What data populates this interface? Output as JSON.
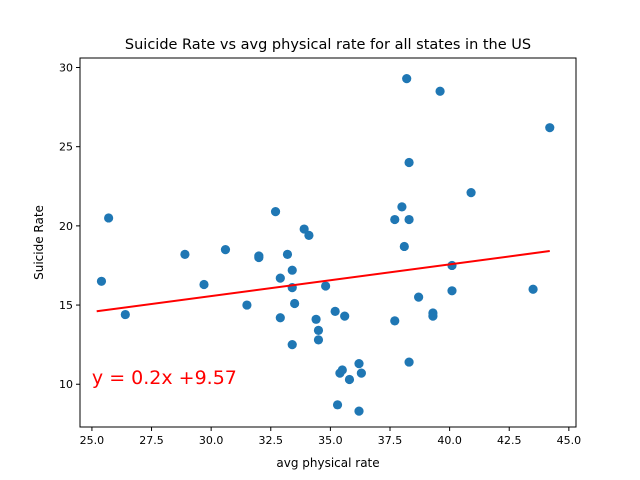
{
  "chart_data": {
    "type": "scatter",
    "title": "Suicide Rate vs avg physical rate for all states in the US",
    "xlabel": "avg physical rate",
    "ylabel": "Suicide Rate",
    "xlim": [
      24.5,
      45.3
    ],
    "ylim": [
      7.3,
      30.6
    ],
    "xticks": [
      25.0,
      27.5,
      30.0,
      32.5,
      35.0,
      37.5,
      40.0,
      42.5,
      45.0
    ],
    "xtick_labels": [
      "25.0",
      "27.5",
      "30.0",
      "32.5",
      "35.0",
      "37.5",
      "40.0",
      "42.5",
      "45.0"
    ],
    "yticks": [
      10,
      15,
      20,
      25,
      30
    ],
    "ytick_labels": [
      "10",
      "15",
      "20",
      "25",
      "30"
    ],
    "grid": false,
    "point_color": "#1f77b4",
    "line_color": "#ff0000",
    "points": [
      {
        "x": 25.4,
        "y": 16.5
      },
      {
        "x": 25.7,
        "y": 20.5
      },
      {
        "x": 26.4,
        "y": 14.4
      },
      {
        "x": 28.9,
        "y": 18.2
      },
      {
        "x": 29.7,
        "y": 16.3
      },
      {
        "x": 30.6,
        "y": 18.5
      },
      {
        "x": 31.5,
        "y": 15.0
      },
      {
        "x": 32.0,
        "y": 18.1
      },
      {
        "x": 32.0,
        "y": 18.0
      },
      {
        "x": 32.7,
        "y": 20.9
      },
      {
        "x": 32.9,
        "y": 16.7
      },
      {
        "x": 32.9,
        "y": 14.2
      },
      {
        "x": 33.2,
        "y": 18.2
      },
      {
        "x": 33.4,
        "y": 17.2
      },
      {
        "x": 33.4,
        "y": 16.1
      },
      {
        "x": 33.5,
        "y": 15.1
      },
      {
        "x": 33.4,
        "y": 12.5
      },
      {
        "x": 33.9,
        "y": 19.8
      },
      {
        "x": 34.1,
        "y": 19.4
      },
      {
        "x": 34.4,
        "y": 14.1
      },
      {
        "x": 34.5,
        "y": 13.4
      },
      {
        "x": 34.5,
        "y": 12.8
      },
      {
        "x": 34.8,
        "y": 16.2
      },
      {
        "x": 35.2,
        "y": 14.6
      },
      {
        "x": 35.3,
        "y": 8.7
      },
      {
        "x": 35.4,
        "y": 10.7
      },
      {
        "x": 35.5,
        "y": 10.9
      },
      {
        "x": 35.6,
        "y": 14.3
      },
      {
        "x": 35.8,
        "y": 10.3
      },
      {
        "x": 36.2,
        "y": 11.3
      },
      {
        "x": 36.3,
        "y": 10.7
      },
      {
        "x": 36.2,
        "y": 8.3
      },
      {
        "x": 37.7,
        "y": 20.4
      },
      {
        "x": 37.7,
        "y": 14.0
      },
      {
        "x": 38.0,
        "y": 21.2
      },
      {
        "x": 38.1,
        "y": 18.7
      },
      {
        "x": 38.2,
        "y": 29.3
      },
      {
        "x": 38.3,
        "y": 24.0
      },
      {
        "x": 38.3,
        "y": 20.4
      },
      {
        "x": 38.3,
        "y": 11.4
      },
      {
        "x": 38.7,
        "y": 15.5
      },
      {
        "x": 39.3,
        "y": 14.5
      },
      {
        "x": 39.3,
        "y": 14.3
      },
      {
        "x": 39.6,
        "y": 28.5
      },
      {
        "x": 40.1,
        "y": 17.5
      },
      {
        "x": 40.1,
        "y": 15.9
      },
      {
        "x": 40.9,
        "y": 22.1
      },
      {
        "x": 43.5,
        "y": 16.0
      },
      {
        "x": 44.2,
        "y": 26.2
      }
    ],
    "regression": {
      "slope": 0.2,
      "intercept": 9.57,
      "x_range": [
        25.2,
        44.2
      ]
    },
    "annotation": {
      "text": "y = 0.2x +9.57",
      "x": 25.0,
      "y": 10.0,
      "color": "#ff0000"
    }
  }
}
